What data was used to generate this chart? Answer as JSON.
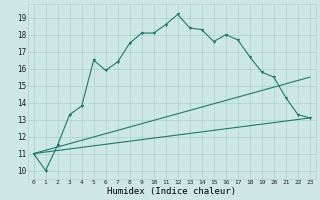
{
  "xlabel": "Humidex (Indice chaleur)",
  "bg_color": "#cde8e4",
  "grid_color": "#b0d4cc",
  "line_color": "#1a7a6a",
  "y_main": [
    11,
    10,
    11.5,
    13.3,
    13.8,
    16.5,
    15.9,
    16.4,
    17.5,
    18.1,
    18.1,
    18.6,
    19.2,
    18.4,
    18.3,
    17.6,
    18.0,
    17.7,
    16.7,
    15.8,
    15.5,
    14.3,
    13.3,
    13.1
  ],
  "y_line1_start": 11.0,
  "y_line1_end": 15.5,
  "y_line2_start": 11.0,
  "y_line2_end": 13.1,
  "ylim": [
    9.5,
    19.8
  ],
  "xlim": [
    -0.5,
    23.5
  ],
  "yticks": [
    10,
    11,
    12,
    13,
    14,
    15,
    16,
    17,
    18,
    19
  ],
  "xticks": [
    0,
    1,
    2,
    3,
    4,
    5,
    6,
    7,
    8,
    9,
    10,
    11,
    12,
    13,
    14,
    15,
    16,
    17,
    18,
    19,
    20,
    21,
    22,
    23
  ]
}
